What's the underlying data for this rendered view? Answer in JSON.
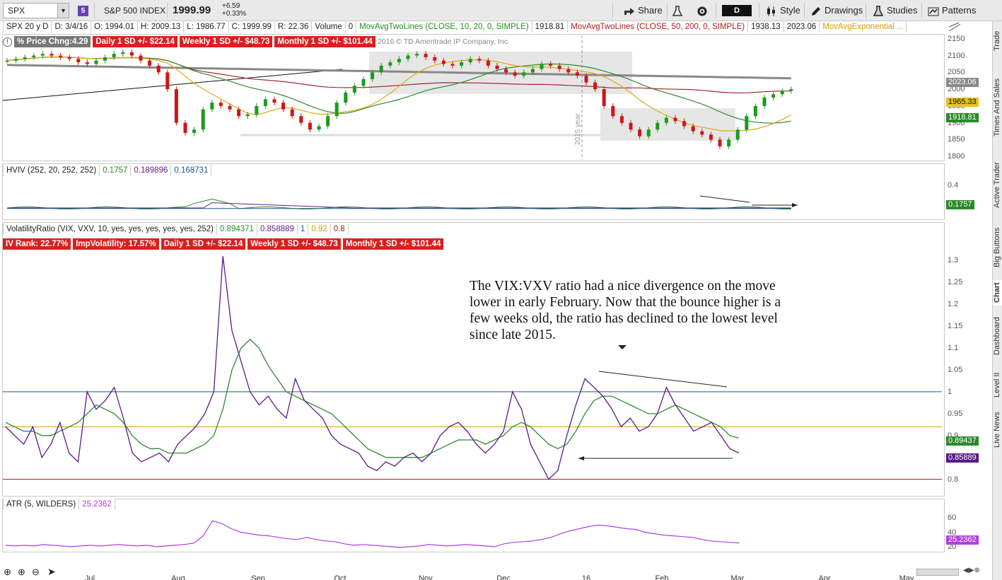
{
  "toolbar": {
    "symbol": "SPX",
    "link_num": "5",
    "name": "S&P 500 INDEX",
    "price": "1999.99",
    "change": "+6.59",
    "change_pct": "+0.33%",
    "share": "Share",
    "timeframe": "D",
    "style": "Style",
    "drawings": "Drawings",
    "studies": "Studies",
    "patterns": "Patterns"
  },
  "right_tabs": [
    "Trade",
    "Times And Sales",
    "Active Trader",
    "Big Buttons",
    "Chart",
    "Dashboard",
    "Level II",
    "Live News"
  ],
  "status_row": [
    "SPX 20 y D",
    "D: 3/4/16",
    "O: 1994.01",
    "H: 2009.13",
    "L: 1986.77",
    "C: 1999.99",
    "R: 22.36",
    "Volume",
    "0"
  ],
  "ma_row": [
    {
      "text": "MovAvgTwoLines (CLOSE, 10, 20, 0, SIMPLE)",
      "color": "#1f8f1f"
    },
    {
      "text": "1918.81",
      "color": "#222"
    },
    {
      "text": "MovAvgTwoLines (CLOSE, 50, 200, 0, SIMPLE)",
      "color": "#b01c1c"
    },
    {
      "text": "1938.13",
      "color": "#222"
    },
    {
      "text": "2023.06",
      "color": "#222"
    },
    {
      "text": "MovAvgExponential ...",
      "color": "#d4a000"
    }
  ],
  "price_labels": {
    "pct_change": "% Price Chng:4.29",
    "daily": "Daily 1 SD +/- $22.14",
    "weekly": "Weekly 1 SD +/- $48.73",
    "monthly": "Monthly 1 SD +/- $101.44",
    "copyright": "2016 © TD Ameritrade IP Company, Inc.",
    "year_marker": "2015 year"
  },
  "hviv": {
    "title": "HVIV (252, 20, 252, 252)",
    "v1": "0.1757",
    "v2": "0.189896",
    "v3": "0.168731",
    "tag": "0.1757"
  },
  "vr": {
    "title": "VolatilityRatio (VIX, VXV, 10, yes, yes, yes, yes, yes, 252)",
    "v1": "0.894371",
    "v2": "0.858889",
    "v3": "1",
    "v4": "0.92",
    "v5": "0.8",
    "ivrank": "IV Rank: 22.77%",
    "impvol": "ImpVolatility: 17.57%",
    "daily": "Daily 1 SD +/- $22.14",
    "weekly": "Weekly 1 SD +/- $48.73",
    "monthly": "Monthly 1 SD +/- $101.44",
    "tag_ma": "0.89437",
    "tag_ratio": "0.85889"
  },
  "annotation": "The VIX:VXV ratio had a nice divergence on the move lower in early February.  Now that the bounce higher is a few weeks old, the ratio has declined to the lowest level since late 2015.",
  "atr": {
    "title": "ATR (5, WILDERS)",
    "value": "25.2362",
    "tag": "25.2362"
  },
  "price_tags": {
    "gray": "2023.06",
    "yellow": "1965.33",
    "green": "1918.81"
  },
  "colors": {
    "up": "#1c9a1c",
    "down": "#d01515",
    "ma10": "#e0a810",
    "ma20": "#2e8b2e",
    "ma50": "#a52a2a",
    "ma200": "#888888",
    "ratio": "#5a1a8a",
    "atr": "#b040e0"
  },
  "chart_data": [
    {
      "type": "candlestick",
      "title": "SPX 20 y D",
      "y_ticks": [
        1800,
        1850,
        1900,
        1950,
        2000,
        2050,
        2100,
        2150
      ],
      "ylim": [
        1790,
        2160
      ],
      "x_ticks": [
        "Jul",
        "Aug",
        "Sep",
        "Oct",
        "Nov",
        "Dec",
        "16",
        "Feb",
        "Mar",
        "Apr",
        "May"
      ],
      "series": [
        {
          "values": [
            2085,
            2090,
            2095,
            2100,
            2105,
            2100,
            2095,
            2090,
            2080,
            2075,
            2085,
            2095,
            2105,
            2110,
            2100,
            2085,
            2070,
            2050,
            2000,
            1900,
            1870,
            1880,
            1940,
            1960,
            1950,
            1940,
            1920,
            1925,
            1950,
            1970,
            1960,
            1940,
            1920,
            1900,
            1880,
            1890,
            1920,
            1960,
            1990,
            2010,
            2030,
            2050,
            2070,
            2080,
            2090,
            2100,
            2105,
            2095,
            2085,
            2075,
            2070,
            2080,
            2090,
            2085,
            2070,
            2060,
            2050,
            2040,
            2050,
            2060,
            2075,
            2070,
            2060,
            2050,
            2040,
            2020,
            2000,
            1950,
            1920,
            1900,
            1880,
            1860,
            1880,
            1900,
            1915,
            1905,
            1890,
            1875,
            1865,
            1850,
            1830,
            1850,
            1880,
            1920,
            1950,
            1975,
            1985,
            1995,
            2000
          ],
          "name": ""
        }
      ]
    },
    {
      "type": "line",
      "title": "VolatilityRatio (VIX, VXV, 10, yes, yes, yes, yes, yes, 252)",
      "y_ticks": [
        0.8,
        0.85,
        0.9,
        0.95,
        1,
        1.05,
        1.1,
        1.15,
        1.2,
        1.25,
        1.3
      ],
      "ylim": [
        0.78,
        1.32
      ],
      "series": [
        {
          "values": [
            0.92,
            0.9,
            0.88,
            0.92,
            0.85,
            0.88,
            0.93,
            0.86,
            0.84,
            1.0,
            0.96,
            0.98,
            1.01,
            0.94,
            0.86,
            0.84,
            0.85,
            0.86,
            0.84,
            0.88,
            0.9,
            0.92,
            0.95,
            1.0,
            1.31,
            1.14,
            1.07,
            1.0,
            0.97,
            0.99,
            0.96,
            0.94,
            1.03,
            0.98,
            0.96,
            0.94,
            0.9,
            0.88,
            0.87,
            0.86,
            0.83,
            0.82,
            0.84,
            0.83,
            0.85,
            0.86,
            0.84,
            0.86,
            0.9,
            0.92,
            0.93,
            0.91,
            0.88,
            0.86,
            0.88,
            0.91,
            1.0,
            0.96,
            0.88,
            0.84,
            0.8,
            0.82,
            0.9,
            0.97,
            1.03,
            1.01,
            0.99,
            0.96,
            0.92,
            0.94,
            0.91,
            0.92,
            0.95,
            1.01,
            0.97,
            0.94,
            0.91,
            0.92,
            0.93,
            0.9,
            0.87,
            0.86
          ],
          "name": ""
        },
        {
          "values": [
            0.93,
            0.92,
            0.91,
            0.91,
            0.9,
            0.9,
            0.91,
            0.92,
            0.93,
            0.95,
            0.97,
            0.96,
            0.95,
            0.93,
            0.9,
            0.88,
            0.87,
            0.87,
            0.86,
            0.86,
            0.86,
            0.87,
            0.88,
            0.9,
            0.96,
            1.05,
            1.1,
            1.12,
            1.1,
            1.06,
            1.03,
            1.0,
            0.99,
            0.98,
            0.97,
            0.96,
            0.95,
            0.93,
            0.91,
            0.89,
            0.87,
            0.86,
            0.85,
            0.85,
            0.85,
            0.85,
            0.85,
            0.86,
            0.87,
            0.88,
            0.89,
            0.89,
            0.89,
            0.88,
            0.89,
            0.9,
            0.92,
            0.93,
            0.92,
            0.9,
            0.88,
            0.87,
            0.88,
            0.91,
            0.95,
            0.98,
            0.99,
            0.99,
            0.98,
            0.97,
            0.96,
            0.95,
            0.95,
            0.96,
            0.97,
            0.96,
            0.95,
            0.94,
            0.93,
            0.92,
            0.9,
            0.894
          ],
          "name": ""
        }
      ]
    },
    {
      "type": "line",
      "title": "ATR (5, WILDERS)",
      "y_ticks": [
        20,
        40,
        60
      ],
      "ylim": [
        15,
        70
      ],
      "series": [
        {
          "values": [
            22,
            21,
            22,
            21,
            23,
            22,
            21,
            20,
            21,
            22,
            21,
            22,
            23,
            22,
            21,
            22,
            20,
            21,
            22,
            23,
            25,
            35,
            56,
            52,
            45,
            40,
            38,
            36,
            35,
            33,
            31,
            30,
            33,
            30,
            28,
            27,
            24,
            22,
            23,
            22,
            21,
            20,
            19,
            20,
            21,
            23,
            22,
            21,
            22,
            23,
            22,
            21,
            20,
            24,
            26,
            27,
            28,
            30,
            33,
            38,
            42,
            45,
            48,
            50,
            49,
            47,
            45,
            44,
            40,
            38,
            36,
            35,
            34,
            33,
            30,
            28,
            27,
            26,
            25.2
          ],
          "name": ""
        }
      ]
    }
  ]
}
